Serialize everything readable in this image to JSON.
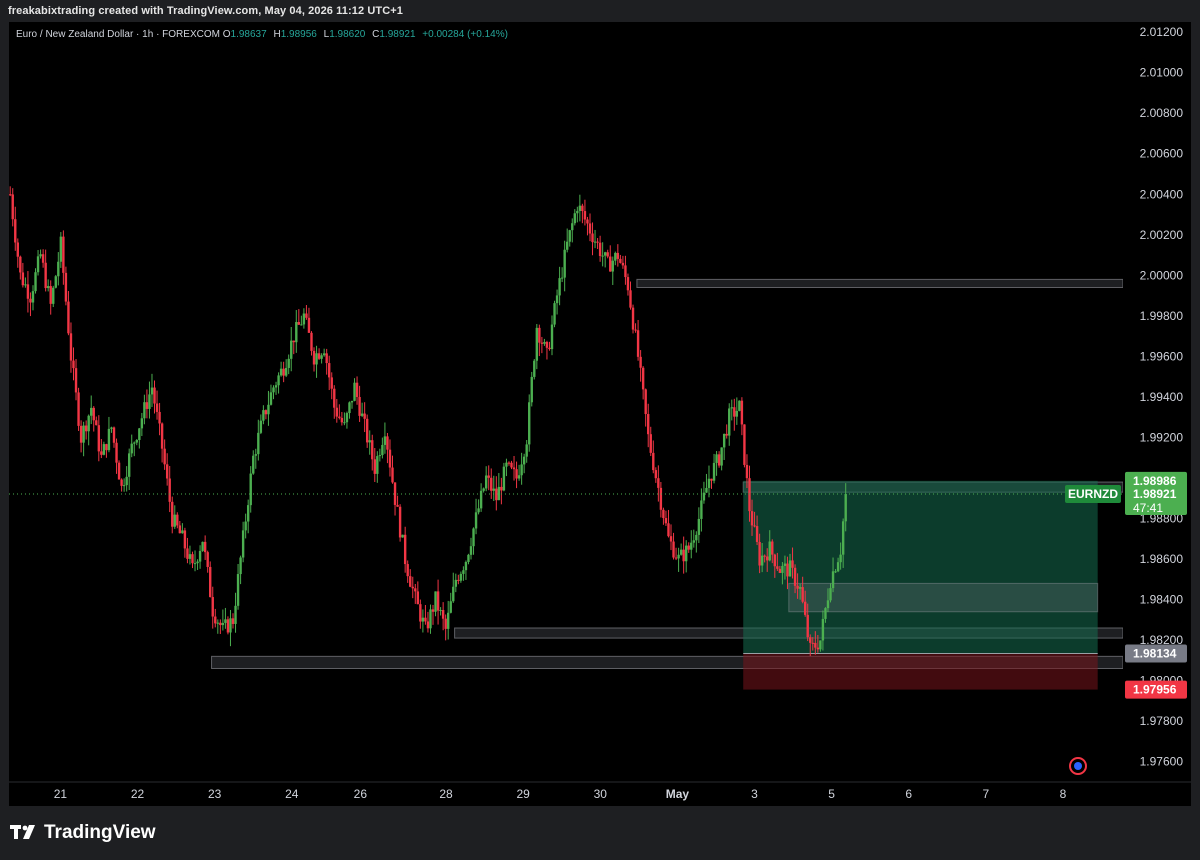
{
  "header": {
    "attribution": "freakabixtrading created with TradingView.com, May 04, 2026 11:12 UTC+1"
  },
  "legend": {
    "symbol": "Euro / New Zealand Dollar · 1h · FOREXCOM",
    "o_label": "O",
    "o": "1.98637",
    "h_label": "H",
    "h": "1.98956",
    "l_label": "L",
    "l": "1.98620",
    "c_label": "C",
    "c": "1.98921",
    "change": "+0.00284 (+0.14%)"
  },
  "brand": {
    "name": "TradingView"
  },
  "colors": {
    "up": "#4caf50",
    "down": "#f23645",
    "profit_zone": "#0b3b2e",
    "loss_zone": "#3a0f12",
    "price_tag": "#4caf50",
    "sl_tag": "#f23645",
    "entry_tag": "#787b86",
    "eur_tag": "#1f8a3a"
  },
  "chart_data": {
    "type": "candlestick",
    "title": "Euro / New Zealand Dollar · 1h · FOREXCOM",
    "y_axis": {
      "min": 1.975,
      "max": 2.0125,
      "ticks": [
        "2.01200",
        "2.01000",
        "2.00800",
        "2.00600",
        "2.00400",
        "2.00200",
        "2.00000",
        "1.99800",
        "1.99600",
        "1.99400",
        "1.99200",
        "1.99000",
        "1.98800",
        "1.98600",
        "1.98400",
        "1.98200",
        "1.98000",
        "1.97800",
        "1.97600"
      ]
    },
    "x_axis": {
      "ticks": [
        "21",
        "22",
        "23",
        "24",
        "26",
        "28",
        "29",
        "30",
        "May",
        "3",
        "5",
        "6",
        "7",
        "8"
      ]
    },
    "price_path": [
      [
        0,
        2.004
      ],
      [
        4,
        2.0
      ],
      [
        8,
        1.999
      ],
      [
        12,
        2.001
      ],
      [
        16,
        1.9985
      ],
      [
        20,
        2.0015
      ],
      [
        24,
        1.996
      ],
      [
        28,
        1.992
      ],
      [
        32,
        1.9935
      ],
      [
        36,
        1.991
      ],
      [
        40,
        1.9925
      ],
      [
        44,
        1.9895
      ],
      [
        48,
        1.9915
      ],
      [
        52,
        1.993
      ],
      [
        56,
        1.9945
      ],
      [
        60,
        1.9915
      ],
      [
        64,
        1.988
      ],
      [
        68,
        1.987
      ],
      [
        72,
        1.9855
      ],
      [
        76,
        1.987
      ],
      [
        80,
        1.9835
      ],
      [
        84,
        1.9825
      ],
      [
        88,
        1.983
      ],
      [
        92,
        1.987
      ],
      [
        96,
        1.991
      ],
      [
        100,
        1.993
      ],
      [
        104,
        1.9945
      ],
      [
        108,
        1.9955
      ],
      [
        112,
        1.997
      ],
      [
        116,
        1.998
      ],
      [
        120,
        1.996
      ],
      [
        124,
        1.9965
      ],
      [
        128,
        1.9935
      ],
      [
        132,
        1.9925
      ],
      [
        136,
        1.9945
      ],
      [
        140,
        1.9925
      ],
      [
        144,
        1.9905
      ],
      [
        148,
        1.9925
      ],
      [
        152,
        1.989
      ],
      [
        156,
        1.986
      ],
      [
        160,
        1.984
      ],
      [
        164,
        1.9825
      ],
      [
        168,
        1.984
      ],
      [
        172,
        1.9825
      ],
      [
        176,
        1.985
      ],
      [
        180,
        1.986
      ],
      [
        184,
        1.988
      ],
      [
        188,
        1.99
      ],
      [
        192,
        1.989
      ],
      [
        196,
        1.9905
      ],
      [
        200,
        1.99
      ],
      [
        204,
        1.992
      ],
      [
        208,
        1.9975
      ],
      [
        212,
        1.996
      ],
      [
        216,
        1.999
      ],
      [
        220,
        2.0015
      ],
      [
        224,
        2.0035
      ],
      [
        228,
        2.0025
      ],
      [
        232,
        2.0015
      ],
      [
        236,
        2.0005
      ],
      [
        240,
        2.001
      ],
      [
        244,
        1.9995
      ],
      [
        248,
        1.996
      ],
      [
        252,
        1.992
      ],
      [
        256,
        1.9895
      ],
      [
        260,
        1.987
      ],
      [
        264,
        1.986
      ],
      [
        268,
        1.9865
      ],
      [
        272,
        1.988
      ],
      [
        276,
        1.99
      ],
      [
        280,
        1.991
      ],
      [
        284,
        1.993
      ],
      [
        288,
        1.9935
      ],
      [
        292,
        1.9885
      ],
      [
        296,
        1.986
      ],
      [
        300,
        1.9865
      ],
      [
        304,
        1.9855
      ],
      [
        308,
        1.9855
      ],
      [
        312,
        1.9845
      ],
      [
        316,
        1.9815
      ],
      [
        320,
        1.982
      ],
      [
        324,
        1.985
      ],
      [
        328,
        1.9865
      ],
      [
        330,
        1.9892
      ]
    ],
    "zones": [
      {
        "y_top": 1.9998,
        "y_bottom": 1.9994,
        "x_from": 248
      },
      {
        "y_top": 1.9898,
        "y_bottom": 1.9893,
        "x_from": 290
      },
      {
        "y_top": 1.9826,
        "y_bottom": 1.9821,
        "x_from": 176
      },
      {
        "y_top": 1.9812,
        "y_bottom": 1.9806,
        "x_from": 80
      }
    ],
    "position": {
      "entry": 1.98134,
      "target": 1.98986,
      "stop": 1.97956,
      "x_from": 290,
      "x_to": 430
    },
    "current_price": 1.98921,
    "price_labels": {
      "target": "1.98986",
      "current": "1.98921",
      "countdown": "47:41",
      "entry": "1.98134",
      "stop": "1.97956",
      "symbol_tag": "EURNZD"
    }
  }
}
